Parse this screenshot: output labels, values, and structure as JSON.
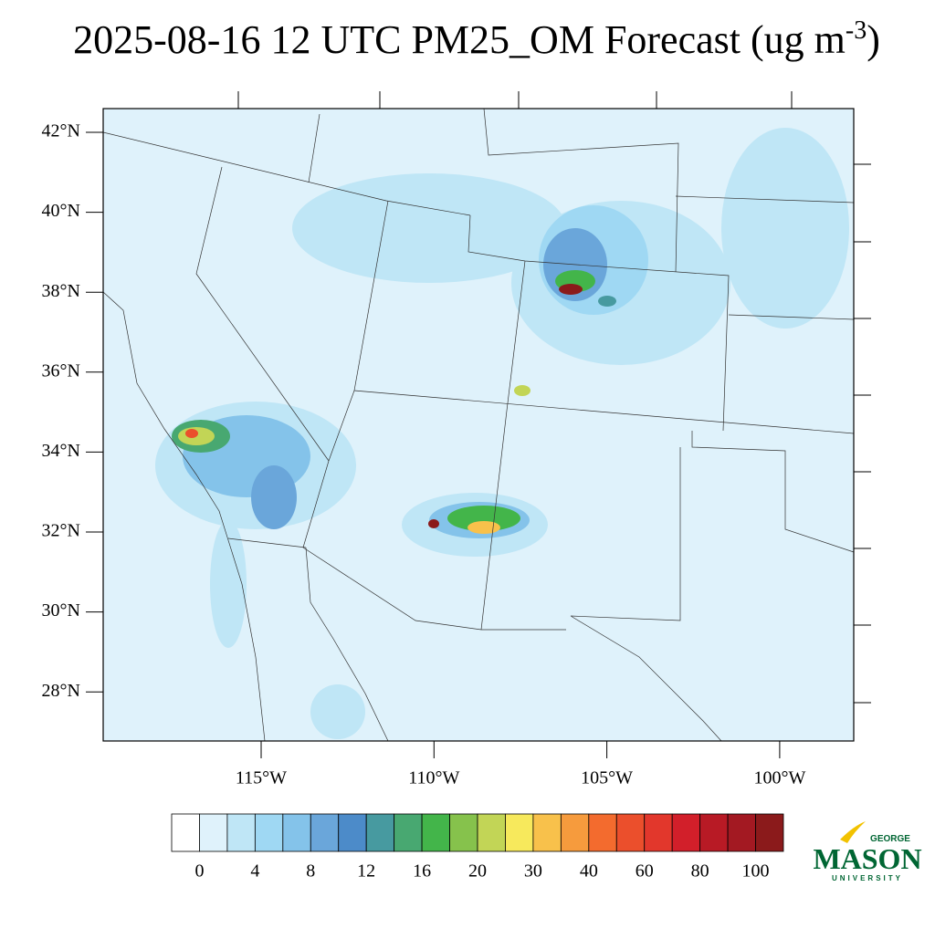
{
  "title": {
    "main": "2025-08-16 12 UTC PM25_OM Forecast (ug m",
    "superscript": "-3",
    "end": ")"
  },
  "map": {
    "lat_labels": [
      "42°N",
      "40°N",
      "38°N",
      "36°N",
      "34°N",
      "32°N",
      "30°N",
      "28°N"
    ],
    "lon_labels": [
      "115°W",
      "110°W",
      "105°W",
      "100°W"
    ]
  },
  "colorbar": {
    "ticks": [
      0,
      4,
      8,
      12,
      16,
      20,
      30,
      40,
      60,
      80,
      100
    ],
    "colors": [
      "#ffffff",
      "#dff2fb",
      "#bfe6f6",
      "#9fd8f3",
      "#84c3ea",
      "#6aa6da",
      "#4c8bc9",
      "#479aa0",
      "#48a871",
      "#43b54a",
      "#86c24c",
      "#c2d556",
      "#f7e95c",
      "#f8c14b",
      "#f69b3d",
      "#f36b2e",
      "#eb4f2c",
      "#e2372c",
      "#d21f2a",
      "#b81a25",
      "#a31922",
      "#8b1a1b"
    ]
  },
  "logo": {
    "top": "GEORGE",
    "main": "MASON",
    "bottom": "UNIVERSITY"
  }
}
